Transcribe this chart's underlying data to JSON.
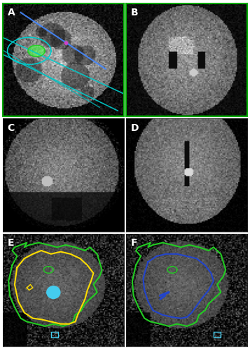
{
  "figure_size": [
    3.57,
    5.0
  ],
  "dpi": 100,
  "border_color": "#00aa00",
  "border_linewidth": 1.5,
  "panel_labels": [
    "A",
    "B",
    "C",
    "D",
    "E",
    "F"
  ],
  "label_color": "#ffffff",
  "label_fontsize": 10,
  "label_fontweight": "bold",
  "grid_rows": 3,
  "grid_cols": 2,
  "background_color": "#000000",
  "outer_border_color": "#333333",
  "panel_E_green_outline": "#22cc22",
  "panel_E_yellow_outline": "#ffdd00",
  "panel_E_cyan_dot": "#44ccee",
  "panel_F_green_outline": "#22cc22",
  "panel_F_blue_outline": "#2244cc",
  "panel_F_cyan_box": "#44ccee",
  "cyan_lines_color": "#00cccc",
  "blue_line_color": "#4488ff",
  "purple_point_color": "#cc44cc",
  "green_highlight": "#44ff44"
}
